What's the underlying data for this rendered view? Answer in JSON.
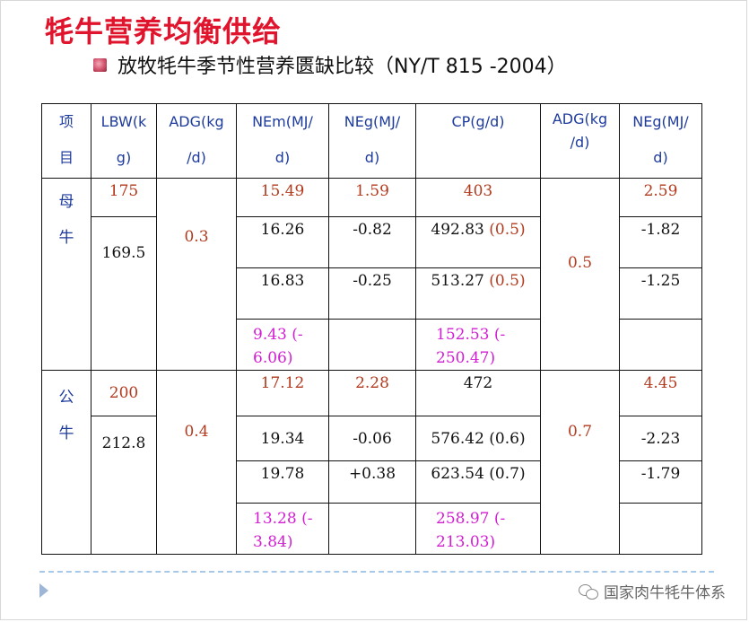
{
  "title": "牦牛营养均衡供给",
  "subtitle": "放牧牦牛季节性营养匮缺比较（NY/T 815 -2004）",
  "headers": {
    "item": [
      "项",
      "目"
    ],
    "lbw": [
      "LBW(k",
      "g)"
    ],
    "adg1": [
      "ADG(kg",
      "/d)"
    ],
    "nem": [
      "NEm(MJ/",
      "d)"
    ],
    "neg1": [
      "NEg(MJ/",
      "d)"
    ],
    "cp": "CP(g/d)",
    "adg2": [
      "ADG(kg",
      "/d)"
    ],
    "neg2": [
      "NEg(MJ/",
      "d)"
    ]
  },
  "groups": {
    "female": [
      "母",
      "牛"
    ],
    "male": [
      "公",
      "牛"
    ]
  },
  "female": {
    "lbw": [
      "175",
      "169.5"
    ],
    "adg1": "0.3",
    "adg2": "0.5",
    "nem": [
      "15.49",
      "16.26",
      "16.83",
      "9.43 (-",
      "6.06)"
    ],
    "neg1": [
      "1.59",
      "-0.82",
      "-0.25"
    ],
    "cp": [
      "403",
      "492.83",
      "(0.5)",
      "513.27",
      "(0.5)",
      "152.53 (-",
      "250.47)"
    ],
    "neg2": [
      "2.59",
      "-1.82",
      "-1.25"
    ]
  },
  "male": {
    "lbw": [
      "200",
      "212.8"
    ],
    "adg1": "0.4",
    "adg2": "0.7",
    "nem": [
      "17.12",
      "19.34",
      "19.78",
      "13.28 (-",
      "3.84)"
    ],
    "neg1": [
      "2.28",
      "-0.06",
      "+0.38"
    ],
    "cp": [
      "472",
      "576.42 (0.6)",
      "623.54 (0.7)",
      "258.97 (-",
      "213.03)"
    ],
    "neg2": [
      "4.45",
      "-2.23",
      "-1.79"
    ]
  },
  "watermark": "国家肉牛牦牛体系",
  "colors": {
    "title": "#e0142c",
    "header": "#1d3b9c",
    "value": "#b23a1e",
    "deficit": "#d21ed2"
  }
}
